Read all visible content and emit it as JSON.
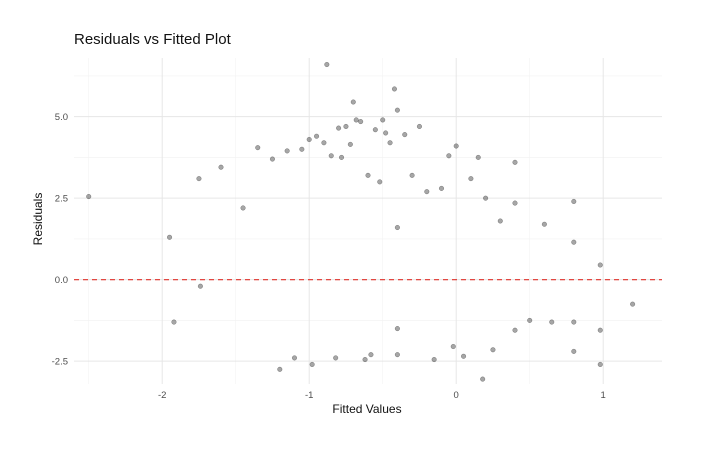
{
  "chart_data": {
    "type": "scatter",
    "title": "Residuals vs Fitted Plot",
    "xlabel": "Fitted Values",
    "ylabel": "Residuals",
    "xlim": [
      -2.6,
      1.4
    ],
    "ylim": [
      -3.2,
      6.8
    ],
    "x_ticks": [
      -2,
      -1,
      0,
      1
    ],
    "x_tick_labels": [
      "-2",
      "-1",
      "0",
      "1"
    ],
    "y_ticks": [
      -2.5,
      0.0,
      2.5,
      5.0
    ],
    "y_tick_labels": [
      "-2.5",
      "0.0",
      "2.5",
      "5.0"
    ],
    "grid": true,
    "reference_line": {
      "y": 0,
      "style": "dashed",
      "color": "#e0302a"
    },
    "point_color": "#000000",
    "point_opacity": 0.35,
    "series": [
      {
        "x": [
          -2.5,
          -1.95,
          -1.92,
          -1.75,
          -1.74,
          -1.6,
          -1.45,
          -1.35,
          -1.25,
          -1.2,
          -1.15,
          -1.1,
          -1.05,
          -1.0,
          -0.98,
          -0.95,
          -0.9,
          -0.88,
          -0.85,
          -0.82,
          -0.8,
          -0.78,
          -0.75,
          -0.72,
          -0.7,
          -0.68,
          -0.65,
          -0.62,
          -0.6,
          -0.58,
          -0.55,
          -0.52,
          -0.5,
          -0.48,
          -0.45,
          -0.42,
          -0.4,
          -0.4,
          -0.4,
          -0.4,
          -0.35,
          -0.3,
          -0.25,
          -0.2,
          -0.15,
          -0.1,
          -0.05,
          -0.02,
          0.0,
          0.05,
          0.1,
          0.15,
          0.18,
          0.2,
          0.25,
          0.3,
          0.4,
          0.4,
          0.4,
          0.5,
          0.6,
          0.65,
          0.8,
          0.8,
          0.8,
          0.8,
          0.98,
          0.98,
          0.98,
          1.2
        ],
        "y": [
          2.55,
          1.3,
          -1.3,
          3.1,
          -0.2,
          3.45,
          2.2,
          4.05,
          3.7,
          -2.75,
          3.95,
          -2.4,
          4.0,
          4.3,
          -2.6,
          4.4,
          4.2,
          6.6,
          3.8,
          -2.4,
          4.65,
          3.75,
          4.7,
          4.15,
          5.45,
          4.9,
          4.85,
          -2.45,
          3.2,
          -2.3,
          4.6,
          3.0,
          4.9,
          4.5,
          4.2,
          5.85,
          5.2,
          -1.5,
          1.6,
          -2.3,
          4.45,
          3.2,
          4.7,
          2.7,
          -2.45,
          2.8,
          3.8,
          -2.05,
          4.1,
          -2.35,
          3.1,
          3.75,
          -3.05,
          2.5,
          -2.15,
          1.8,
          3.6,
          -1.55,
          2.35,
          -1.25,
          1.7,
          -1.3,
          2.4,
          1.15,
          -1.3,
          -2.2,
          0.45,
          -1.55,
          -2.6,
          -0.75
        ]
      }
    ]
  }
}
